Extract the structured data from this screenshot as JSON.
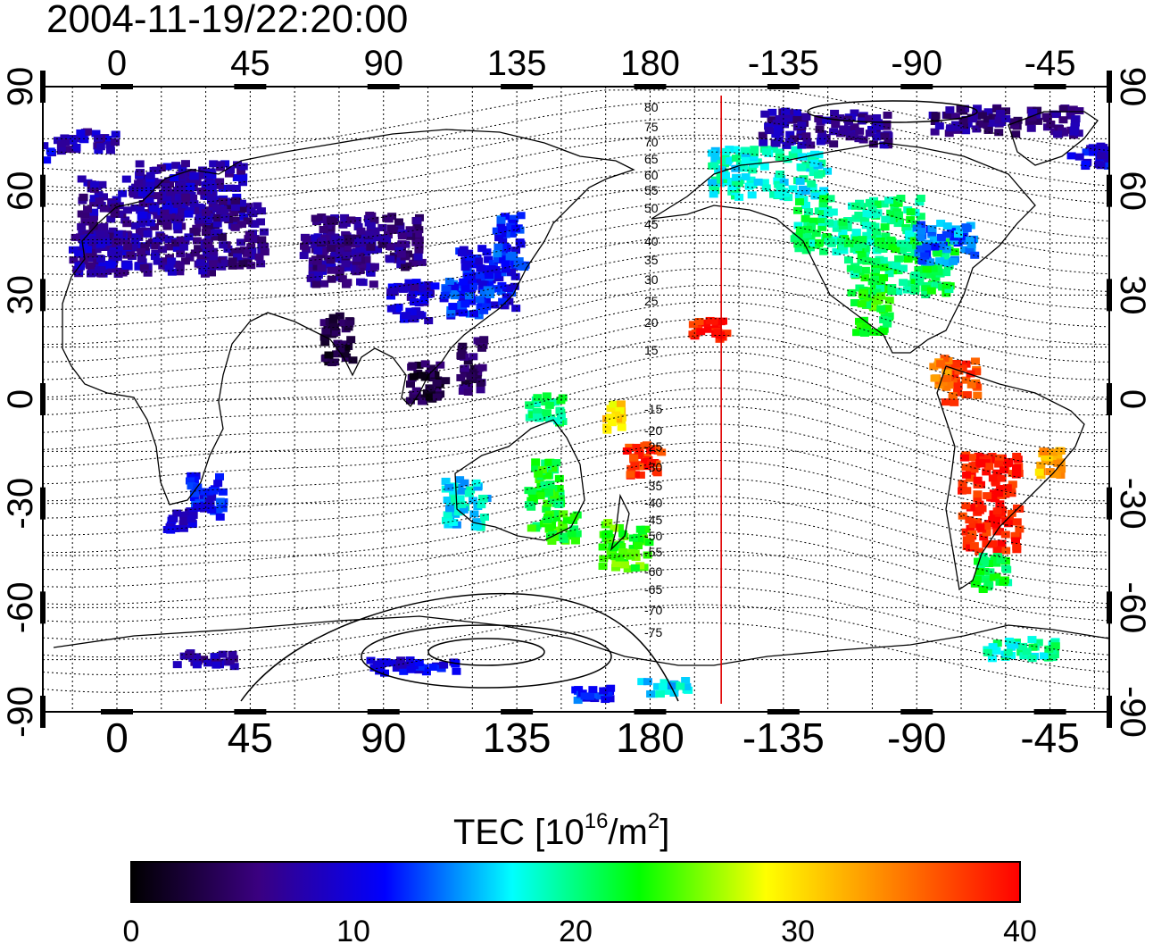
{
  "title": "2004-11-19/22:20:00",
  "map": {
    "top_lon_labels": [
      "0",
      "45",
      "90",
      "135",
      "180",
      "-135",
      "-90",
      "-45"
    ],
    "bottom_lon_labels": [
      "0",
      "45",
      "90",
      "135",
      "180",
      "-135",
      "-90",
      "-45"
    ],
    "left_lat_labels": [
      "90",
      "60",
      "30",
      "0",
      "-30",
      "-60",
      "-90"
    ],
    "right_lat_labels": [
      "90",
      "60",
      "30",
      "0",
      "-30",
      "-60",
      "-90"
    ],
    "lon_ticks": [
      0,
      45,
      90,
      135,
      180,
      -135,
      -90,
      -45
    ],
    "lat_ticks": [
      90,
      60,
      30,
      0,
      -30,
      -60,
      -90
    ],
    "lon_range": [
      -25,
      335
    ],
    "lat_range": [
      -90,
      90
    ],
    "grid": "dotted every 15 degrees",
    "terminator_lon": -156,
    "terminator_color": "#e00000",
    "mag_lat_labels_north": [
      "80",
      "75",
      "70",
      "65",
      "60",
      "55",
      "50",
      "45",
      "40",
      "35",
      "30",
      "25",
      "20",
      "15"
    ],
    "mag_lat_labels_south": [
      "-15",
      "-20",
      "-25",
      "-30",
      "-35",
      "-40",
      "-45",
      "-50",
      "-55",
      "-60",
      "-65",
      "-70",
      "-75"
    ]
  },
  "colorbar": {
    "title_main": "TEC  [10",
    "title_sup1": "16",
    "title_mid": "/m",
    "title_sup2": "2",
    "title_end": "]",
    "tick_labels": [
      "0",
      "10",
      "20",
      "30",
      "40"
    ],
    "min": 0,
    "max": 40,
    "colors": [
      "#000000",
      "#3a0080",
      "#0000ff",
      "#00ffff",
      "#00ff00",
      "#ffff00",
      "#ff8000",
      "#ff0000"
    ]
  },
  "tec_regions": [
    {
      "lon": 10,
      "lat": 50,
      "rlon": 22,
      "rlat": 14,
      "tec": 7
    },
    {
      "lon": -5,
      "lat": 42,
      "rlon": 10,
      "rlat": 6,
      "tec": 8
    },
    {
      "lon": 25,
      "lat": 60,
      "rlon": 18,
      "rlat": 8,
      "tec": 8
    },
    {
      "lon": 40,
      "lat": 48,
      "rlon": 10,
      "rlat": 10,
      "tec": 6
    },
    {
      "lon": 75,
      "lat": 40,
      "rlon": 12,
      "rlat": 7,
      "tec": 7
    },
    {
      "lon": 85,
      "lat": 45,
      "rlon": 18,
      "rlat": 8,
      "tec": 6
    },
    {
      "lon": 75,
      "lat": 17,
      "rlon": 5,
      "rlat": 7,
      "tec": 3
    },
    {
      "lon": 100,
      "lat": 28,
      "rlon": 8,
      "rlat": 6,
      "tec": 9
    },
    {
      "lon": 125,
      "lat": 35,
      "rlon": 10,
      "rlat": 9,
      "tec": 11
    },
    {
      "lon": 133,
      "lat": 45,
      "rlon": 5,
      "rlat": 8,
      "tec": 12
    },
    {
      "lon": 118,
      "lat": 30,
      "rlon": 8,
      "rlat": 6,
      "tec": 12
    },
    {
      "lon": 105,
      "lat": 5,
      "rlon": 6,
      "rlat": 6,
      "tec": 3
    },
    {
      "lon": 120,
      "lat": 10,
      "rlon": 4,
      "rlat": 8,
      "tec": 4
    },
    {
      "lon": 30,
      "lat": -28,
      "rlon": 6,
      "rlat": 6,
      "tec": 11
    },
    {
      "lon": 22,
      "lat": -35,
      "rlon": 5,
      "rlat": 3,
      "tec": 9
    },
    {
      "lon": 118,
      "lat": -30,
      "rlon": 7,
      "rlat": 7,
      "tec": 17
    },
    {
      "lon": 145,
      "lat": -28,
      "rlon": 6,
      "rlat": 10,
      "tec": 22
    },
    {
      "lon": 150,
      "lat": -37,
      "rlon": 6,
      "rlat": 4,
      "tec": 23
    },
    {
      "lon": 172,
      "lat": -42,
      "rlon": 8,
      "rlat": 7,
      "tec": 24
    },
    {
      "lon": 178,
      "lat": -18,
      "rlon": 6,
      "rlat": 5,
      "tec": 38
    },
    {
      "lon": 168,
      "lat": -5,
      "rlon": 3,
      "rlat": 4,
      "tec": 30
    },
    {
      "lon": 145,
      "lat": -3,
      "rlon": 6,
      "rlat": 4,
      "tec": 20
    },
    {
      "lon": -160,
      "lat": 20,
      "rlon": 6,
      "rlat": 3,
      "tec": 39
    },
    {
      "lon": -140,
      "lat": 65,
      "rlon": 20,
      "rlat": 7,
      "tec": 18
    },
    {
      "lon": -110,
      "lat": 50,
      "rlon": 22,
      "rlat": 8,
      "tec": 20
    },
    {
      "lon": -95,
      "lat": 38,
      "rlon": 18,
      "rlat": 8,
      "tec": 21
    },
    {
      "lon": -80,
      "lat": 45,
      "rlon": 10,
      "rlat": 6,
      "tec": 14
    },
    {
      "lon": -105,
      "lat": 25,
      "rlon": 6,
      "rlat": 6,
      "tec": 23
    },
    {
      "lon": -75,
      "lat": 5,
      "rlon": 6,
      "rlat": 6,
      "tec": 37
    },
    {
      "lon": -82,
      "lat": 8,
      "rlon": 3,
      "rlat": 4,
      "tec": 34
    },
    {
      "lon": -65,
      "lat": -30,
      "rlon": 10,
      "rlat": 14,
      "tec": 39
    },
    {
      "lon": -45,
      "lat": -18,
      "rlon": 5,
      "rlat": 4,
      "tec": 32
    },
    {
      "lon": -65,
      "lat": -50,
      "rlon": 6,
      "rlat": 5,
      "tec": 21
    },
    {
      "lon": -55,
      "lat": -72,
      "rlon": 12,
      "rlat": 3,
      "tec": 19
    },
    {
      "lon": -120,
      "lat": 78,
      "rlon": 22,
      "rlat": 5,
      "tec": 7
    },
    {
      "lon": -60,
      "lat": 80,
      "rlon": 25,
      "rlat": 4,
      "tec": 6
    },
    {
      "lon": -30,
      "lat": 70,
      "rlon": 8,
      "rlat": 3,
      "tec": 10
    },
    {
      "lon": -10,
      "lat": 74,
      "rlon": 10,
      "rlat": 3,
      "tec": 8
    },
    {
      "lon": 30,
      "lat": -75,
      "rlon": 10,
      "rlat": 2,
      "tec": 7
    },
    {
      "lon": 100,
      "lat": -77,
      "rlon": 15,
      "rlat": 2,
      "tec": 10
    },
    {
      "lon": 160,
      "lat": -85,
      "rlon": 8,
      "rlat": 2,
      "tec": 12
    },
    {
      "lon": 185,
      "lat": -83,
      "rlon": 8,
      "rlat": 2,
      "tec": 17
    }
  ]
}
